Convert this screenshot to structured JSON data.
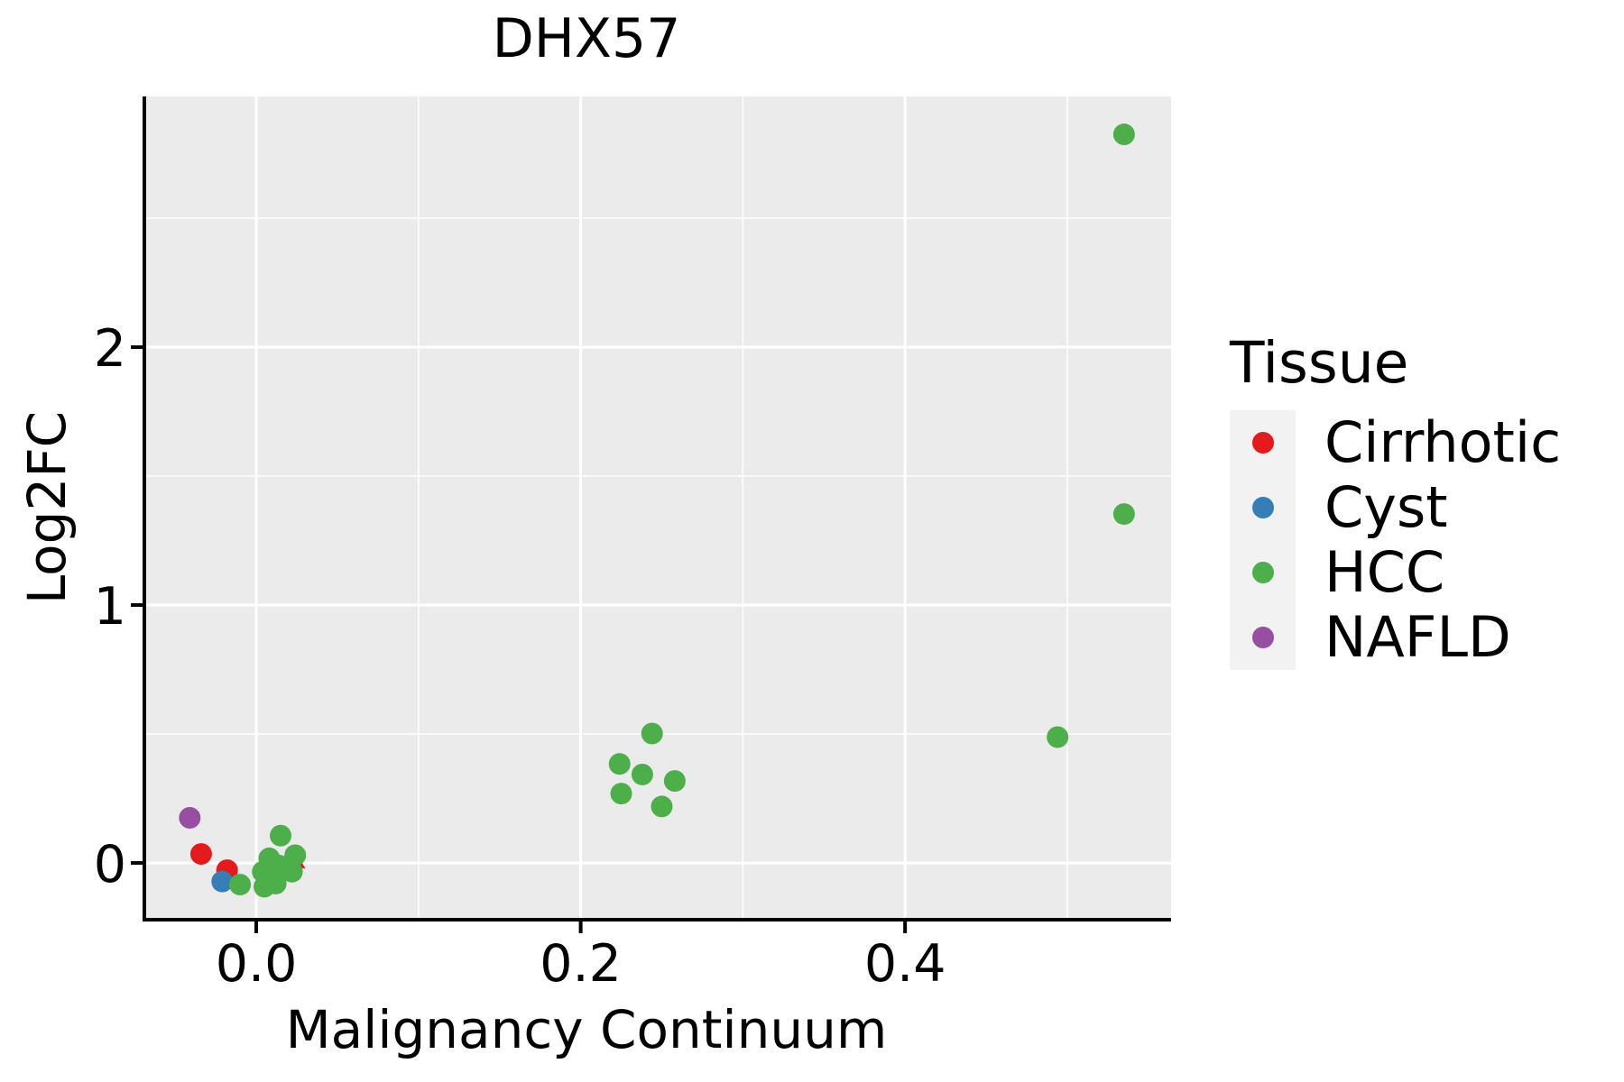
{
  "chart_data": {
    "type": "scatter",
    "title": "DHX57",
    "xlabel": "Malignancy Continuum",
    "ylabel": "Log2FC",
    "xlim": [
      -0.069,
      0.564
    ],
    "ylim": [
      -0.22,
      2.972
    ],
    "grid": true,
    "x_ticks": {
      "values": [
        0.0,
        0.2,
        0.4
      ],
      "labels": [
        "0.0",
        "0.2",
        "0.4"
      ]
    },
    "y_ticks": {
      "values": [
        0,
        1,
        2
      ],
      "labels": [
        "0",
        "1",
        "2"
      ]
    },
    "x_minor_ticks": [
      0.1,
      0.3,
      0.5
    ],
    "y_minor_ticks": [
      0.5,
      1.5,
      2.5
    ],
    "legend": {
      "title": "Tissue",
      "position": "right",
      "entries": [
        {
          "label": "Cirrhotic",
          "color": "#E41A1C"
        },
        {
          "label": "Cyst",
          "color": "#377EB8"
        },
        {
          "label": "HCC",
          "color": "#4DAF4A"
        },
        {
          "label": "NAFLD",
          "color": "#984EA3"
        }
      ]
    },
    "series": [
      {
        "name": "Cirrhotic",
        "color": "#E41A1C",
        "marker": "circle",
        "points": [
          [
            -0.034,
            0.035
          ],
          [
            -0.018,
            -0.028
          ],
          [
            0.012,
            -0.03
          ]
        ]
      },
      {
        "name": "Cirrhotic",
        "color": "#E41A1C",
        "marker": "triangle-up",
        "points": [
          [
            0.023,
            0.012
          ]
        ]
      },
      {
        "name": "Cyst",
        "color": "#377EB8",
        "marker": "circle",
        "points": [
          [
            -0.021,
            -0.072
          ]
        ]
      },
      {
        "name": "HCC",
        "color": "#4DAF4A",
        "marker": "circle",
        "points": [
          [
            -0.01,
            -0.084
          ],
          [
            0.005,
            -0.092
          ],
          [
            0.015,
            0.106
          ],
          [
            0.008,
            0.018
          ],
          [
            0.004,
            -0.034
          ],
          [
            0.012,
            -0.08
          ],
          [
            0.022,
            -0.034
          ],
          [
            0.024,
            0.03
          ],
          [
            0.014,
            -0.01
          ],
          [
            0.224,
            0.384
          ],
          [
            0.225,
            0.269
          ],
          [
            0.238,
            0.343
          ],
          [
            0.244,
            0.502
          ],
          [
            0.25,
            0.219
          ],
          [
            0.258,
            0.318
          ],
          [
            0.494,
            0.488
          ],
          [
            0.535,
            1.353
          ],
          [
            0.535,
            2.825
          ]
        ]
      },
      {
        "name": "NAFLD",
        "color": "#984EA3",
        "marker": "circle",
        "points": [
          [
            -0.041,
            0.175
          ]
        ]
      }
    ]
  },
  "colors": {
    "panel_background": "#EBEBEB",
    "gridline": "#FFFFFF",
    "axis_line": "#000000",
    "legend_key_background": "#F2F2F2",
    "text": "#000000"
  },
  "marker": {
    "radius": 12
  }
}
